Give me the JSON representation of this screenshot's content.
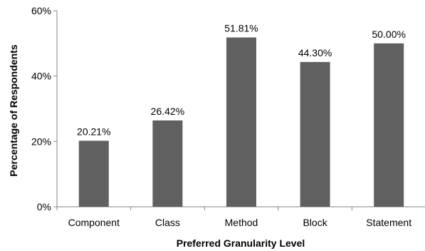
{
  "chart_data": {
    "type": "bar",
    "title": "",
    "xlabel": "Preferred Granularity Level",
    "ylabel": "Percentage of Respondents",
    "categories": [
      "Component",
      "Class",
      "Method",
      "Block",
      "Statement"
    ],
    "values": [
      20.21,
      26.42,
      51.81,
      44.3,
      50.0
    ],
    "value_labels": [
      "20.21%",
      "26.42%",
      "51.81%",
      "44.30%",
      "50.00%"
    ],
    "ylim": [
      0,
      60
    ],
    "yticks": [
      0,
      20,
      40,
      60
    ],
    "ytick_labels": [
      "0%",
      "20%",
      "40%",
      "60%"
    ],
    "grid": false,
    "legend": "none",
    "bar_color": "#606060",
    "axis_color": "#868686"
  }
}
